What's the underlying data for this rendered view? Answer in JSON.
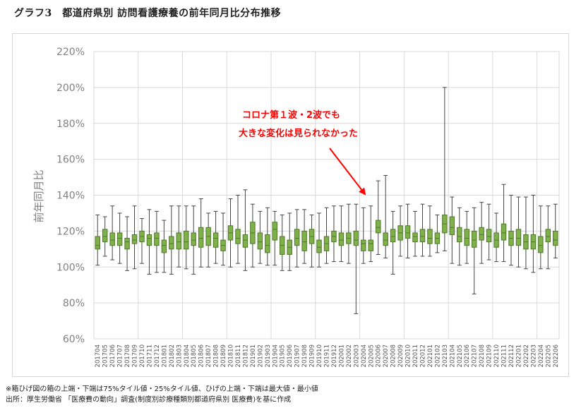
{
  "title": "グラフ3　都道府県別 訪問看護療養の前年同月比分布推移",
  "notes": [
    "※箱ひげ図の箱の上端・下端は75%タイル値・25%タイル値、ひげの上端・下端は最大値・最小値",
    "出所：厚生労働省 「医療費の動向」調査(制度別診療種類別都道府県別 医療費)を基に作成"
  ],
  "colors": {
    "box_fill": "#7fb04a",
    "box_stroke": "#4f7a2a",
    "whisker": "#444444",
    "grid": "#d9d9d9",
    "annotation": "#ff0000",
    "axis_text": "#808080"
  },
  "chart_data": {
    "type": "boxplot",
    "ylabel": "前年同月比",
    "ylim": [
      0.6,
      2.2
    ],
    "yticks": [
      "60%",
      "80%",
      "100%",
      "120%",
      "140%",
      "160%",
      "180%",
      "200%",
      "220%"
    ],
    "annotation": {
      "lines": [
        "コロナ第１波・2波でも",
        "大きな変化は見られなかった"
      ],
      "arrow_target": "202004"
    },
    "categories": [
      "201704",
      "201705",
      "201706",
      "201707",
      "201708",
      "201709",
      "201710",
      "201711",
      "201712",
      "201801",
      "201802",
      "201803",
      "201804",
      "201805",
      "201806",
      "201807",
      "201808",
      "201809",
      "201810",
      "201811",
      "201812",
      "201901",
      "201902",
      "201903",
      "201904",
      "201905",
      "201906",
      "201907",
      "201908",
      "201909",
      "201910",
      "201911",
      "201912",
      "202001",
      "202002",
      "202003",
      "202004",
      "202005",
      "202006",
      "202007",
      "202008",
      "202009",
      "202010",
      "202011",
      "202012",
      "202101",
      "202102",
      "202103",
      "202104",
      "202105",
      "202106",
      "202107",
      "202108",
      "202109",
      "202110",
      "202111",
      "202112",
      "202201",
      "202202",
      "202203",
      "202204",
      "202205",
      "202206"
    ],
    "min": [
      1.01,
      1.06,
      1.04,
      1.02,
      0.98,
      0.99,
      1.02,
      0.96,
      0.97,
      0.97,
      0.96,
      1.0,
      0.99,
      0.96,
      1.0,
      1.0,
      1.02,
      1.01,
      1.0,
      1.02,
      0.98,
      1.0,
      1.02,
      1.01,
      1.01,
      0.98,
      0.98,
      1.0,
      1.02,
      1.0,
      1.0,
      1.02,
      1.03,
      1.03,
      1.02,
      0.74,
      1.02,
      1.03,
      1.07,
      1.05,
      0.96,
      1.06,
      1.05,
      1.06,
      1.06,
      1.06,
      1.08,
      1.09,
      1.02,
      1.01,
      1.02,
      0.85,
      1.02,
      1.04,
      1.03,
      1.03,
      1.01,
      1.0,
      0.99,
      0.97,
      0.99,
      0.99,
      1.05
    ],
    "q1": [
      1.1,
      1.14,
      1.12,
      1.12,
      1.1,
      1.13,
      1.14,
      1.12,
      1.12,
      1.08,
      1.1,
      1.1,
      1.1,
      1.12,
      1.11,
      1.12,
      1.11,
      1.09,
      1.15,
      1.13,
      1.11,
      1.13,
      1.1,
      1.08,
      1.15,
      1.07,
      1.07,
      1.12,
      1.09,
      1.13,
      1.08,
      1.09,
      1.14,
      1.12,
      1.13,
      1.12,
      1.09,
      1.09,
      1.19,
      1.12,
      1.14,
      1.15,
      1.16,
      1.14,
      1.14,
      1.13,
      1.13,
      1.19,
      1.18,
      1.14,
      1.12,
      1.11,
      1.15,
      1.14,
      1.11,
      1.15,
      1.12,
      1.12,
      1.1,
      1.1,
      1.08,
      1.14,
      1.12
    ],
    "median": [
      1.12,
      1.17,
      1.15,
      1.16,
      1.14,
      1.15,
      1.17,
      1.16,
      1.16,
      1.12,
      1.13,
      1.14,
      1.14,
      1.15,
      1.16,
      1.17,
      1.16,
      1.12,
      1.19,
      1.16,
      1.15,
      1.19,
      1.14,
      1.12,
      1.21,
      1.12,
      1.11,
      1.16,
      1.14,
      1.17,
      1.11,
      1.13,
      1.17,
      1.15,
      1.16,
      1.15,
      1.13,
      1.13,
      1.22,
      1.15,
      1.17,
      1.19,
      1.19,
      1.17,
      1.17,
      1.16,
      1.16,
      1.24,
      1.22,
      1.17,
      1.16,
      1.15,
      1.18,
      1.17,
      1.15,
      1.19,
      1.16,
      1.16,
      1.14,
      1.14,
      1.12,
      1.17,
      1.15
    ],
    "q3": [
      1.17,
      1.21,
      1.19,
      1.19,
      1.16,
      1.18,
      1.2,
      1.18,
      1.19,
      1.15,
      1.17,
      1.19,
      1.2,
      1.19,
      1.22,
      1.22,
      1.19,
      1.15,
      1.23,
      1.21,
      1.18,
      1.25,
      1.19,
      1.18,
      1.25,
      1.17,
      1.15,
      1.21,
      1.2,
      1.21,
      1.15,
      1.17,
      1.2,
      1.19,
      1.19,
      1.2,
      1.15,
      1.15,
      1.26,
      1.19,
      1.21,
      1.23,
      1.23,
      1.19,
      1.21,
      1.21,
      1.19,
      1.29,
      1.28,
      1.22,
      1.21,
      1.2,
      1.22,
      1.21,
      1.19,
      1.24,
      1.2,
      1.21,
      1.18,
      1.18,
      1.17,
      1.21,
      1.2
    ],
    "max": [
      1.29,
      1.28,
      1.34,
      1.3,
      1.28,
      1.34,
      1.27,
      1.32,
      1.31,
      1.26,
      1.34,
      1.34,
      1.34,
      1.34,
      1.38,
      1.3,
      1.31,
      1.3,
      1.38,
      1.4,
      1.43,
      1.35,
      1.31,
      1.33,
      1.31,
      1.29,
      1.3,
      1.32,
      1.32,
      1.29,
      1.3,
      1.33,
      1.34,
      1.34,
      1.35,
      1.35,
      1.33,
      1.34,
      1.48,
      1.51,
      1.31,
      1.34,
      1.35,
      1.31,
      1.35,
      1.34,
      1.29,
      2.0,
      1.39,
      1.33,
      1.31,
      1.33,
      1.36,
      1.35,
      1.3,
      1.46,
      1.4,
      1.39,
      1.39,
      1.4,
      1.34,
      1.34,
      1.35
    ]
  }
}
